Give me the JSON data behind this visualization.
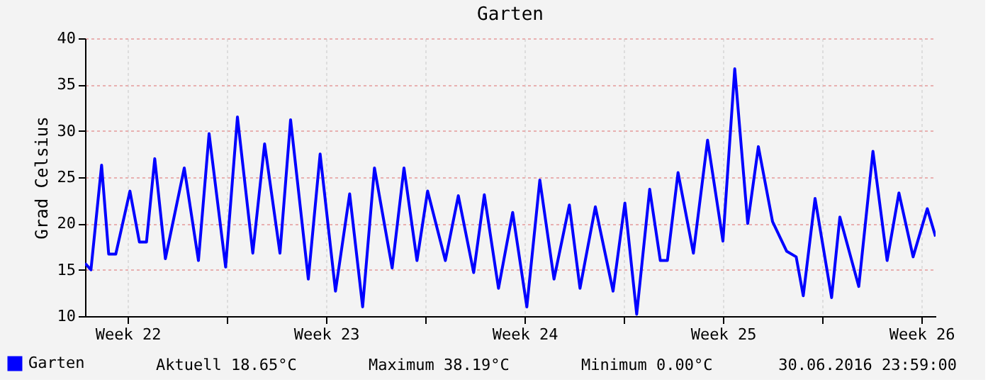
{
  "chart_data": {
    "type": "line",
    "title": "Garten",
    "ylabel": "Grad Celsius",
    "x": [
      "2016-06-01T00:00",
      "2016-06-01T05:00",
      "2016-06-01T14:00",
      "2016-06-01T20:00",
      "2016-06-02T02:00",
      "2016-06-02T14:00",
      "2016-06-02T22:00",
      "2016-06-03T04:00",
      "2016-06-03T11:00",
      "2016-06-03T20:00",
      "2016-06-04T12:00",
      "2016-06-05T00:00",
      "2016-06-05T09:00",
      "2016-06-05T23:00",
      "2016-06-06T09:00",
      "2016-06-06T22:00",
      "2016-06-07T08:00",
      "2016-06-07T21:00",
      "2016-06-08T06:00",
      "2016-06-08T21:00",
      "2016-06-09T07:00",
      "2016-06-09T20:00",
      "2016-06-10T08:00",
      "2016-06-10T19:00",
      "2016-06-11T05:00",
      "2016-06-11T20:00",
      "2016-06-12T06:00",
      "2016-06-12T17:00",
      "2016-06-13T02:00",
      "2016-06-13T17:00",
      "2016-06-14T04:00",
      "2016-06-14T17:00",
      "2016-06-15T02:00",
      "2016-06-15T14:00",
      "2016-06-16T02:00",
      "2016-06-16T14:00",
      "2016-06-17T01:00",
      "2016-06-17T13:00",
      "2016-06-18T02:00",
      "2016-06-18T11:00",
      "2016-06-19T00:00",
      "2016-06-19T15:00",
      "2016-06-20T01:00",
      "2016-06-20T11:00",
      "2016-06-20T22:00",
      "2016-06-21T07:00",
      "2016-06-21T13:00",
      "2016-06-21T22:00",
      "2016-06-22T11:00",
      "2016-06-22T23:00",
      "2016-06-23T12:00",
      "2016-06-23T22:00",
      "2016-06-24T09:00",
      "2016-06-24T18:00",
      "2016-06-25T06:00",
      "2016-06-25T18:00",
      "2016-06-26T02:00",
      "2016-06-26T08:00",
      "2016-06-26T18:00",
      "2016-06-27T08:00",
      "2016-06-27T15:00",
      "2016-06-28T07:00",
      "2016-06-28T19:00",
      "2016-06-29T07:00",
      "2016-06-29T17:00",
      "2016-06-30T05:00",
      "2016-06-30T17:00",
      "2016-06-30T23:59"
    ],
    "series": [
      {
        "name": "Garten",
        "color": "#0000ff",
        "values": [
          15.7,
          15.0,
          26.3,
          16.7,
          16.7,
          23.5,
          18.0,
          18.0,
          27.0,
          16.2,
          26.0,
          16.0,
          29.7,
          15.3,
          31.5,
          16.8,
          28.6,
          16.8,
          31.2,
          14.0,
          27.5,
          12.7,
          23.2,
          11.0,
          26.0,
          15.2,
          26.0,
          16.0,
          23.5,
          16.0,
          23.0,
          14.7,
          23.1,
          13.0,
          21.2,
          11.0,
          24.7,
          14.0,
          22.0,
          13.0,
          21.8,
          12.7,
          22.2,
          10.2,
          23.7,
          16.0,
          16.0,
          25.5,
          16.8,
          29.0,
          18.1,
          36.7,
          20.0,
          28.3,
          20.2,
          17.0,
          16.4,
          12.2,
          22.7,
          12.0,
          20.7,
          13.2,
          27.8,
          16.0,
          23.3,
          16.4,
          21.6,
          18.6
        ]
      }
    ],
    "xlim": [
      "2016-06-01T00:00",
      "2016-07-01T00:00"
    ],
    "xticks": [
      {
        "value": "2016-06-02T12:00",
        "label": "Week 22"
      },
      {
        "value": "2016-06-09T12:00",
        "label": "Week 23"
      },
      {
        "value": "2016-06-16T12:00",
        "label": "Week 24"
      },
      {
        "value": "2016-06-23T12:00",
        "label": "Week 25"
      },
      {
        "value": "2016-06-30T12:00",
        "label": "Week 26"
      },
      {
        "value": "2016-06-06T00:00",
        "label": null
      },
      {
        "value": "2016-06-13T00:00",
        "label": null
      },
      {
        "value": "2016-06-20T00:00",
        "label": null
      },
      {
        "value": "2016-06-27T00:00",
        "label": null
      }
    ],
    "ylim": [
      10,
      40
    ],
    "yticks": [
      10,
      15,
      20,
      25,
      30,
      35,
      40
    ],
    "grid": true,
    "legend": "bottom left",
    "annotations": [
      "Aktuell 18.65°C",
      "Maximum 38.19°C",
      "Minimum 0.00°C",
      "30.06.2016 23:59:00"
    ]
  }
}
